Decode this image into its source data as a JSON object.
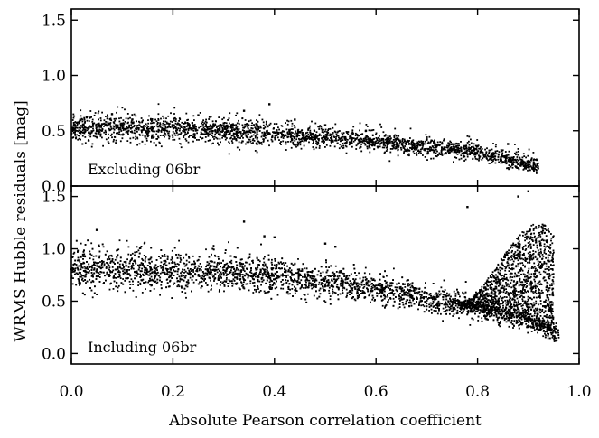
{
  "chart_data": [
    {
      "type": "scatter",
      "panel_label": "Excluding 06br",
      "xlim": [
        0.0,
        1.0
      ],
      "ylim": [
        0.0,
        1.6
      ],
      "yticks": [
        "0.0",
        "0.5",
        "1.0",
        "1.5"
      ],
      "band": {
        "x_start": 0.0,
        "x_end": 0.92,
        "y_at": [
          [
            0.0,
            0.52
          ],
          [
            0.2,
            0.51
          ],
          [
            0.4,
            0.47
          ],
          [
            0.6,
            0.4
          ],
          [
            0.8,
            0.3
          ],
          [
            0.92,
            0.17
          ]
        ],
        "scatter_above": 0.12
      },
      "points": [
        {
          "x": 0.03,
          "y": 0.62
        },
        {
          "x": 0.08,
          "y": 0.65
        },
        {
          "x": 0.12,
          "y": 0.6
        },
        {
          "x": 0.25,
          "y": 0.64
        },
        {
          "x": 0.34,
          "y": 0.68
        },
        {
          "x": 0.39,
          "y": 0.74
        },
        {
          "x": 0.44,
          "y": 0.6
        },
        {
          "x": 0.5,
          "y": 0.55
        },
        {
          "x": 0.58,
          "y": 0.5
        },
        {
          "x": 0.7,
          "y": 0.42
        },
        {
          "x": 0.8,
          "y": 0.36
        },
        {
          "x": 0.86,
          "y": 0.38
        }
      ]
    },
    {
      "type": "scatter",
      "panel_label": "Including 06br",
      "xlim": [
        0.0,
        1.0
      ],
      "ylim": [
        -0.1,
        1.6
      ],
      "yticks": [
        "0.0",
        "0.5",
        "1.0",
        "1.5"
      ],
      "xticks": [
        "0.0",
        "0.2",
        "0.4",
        "0.6",
        "0.8",
        "1.0"
      ],
      "band": {
        "x_start": 0.0,
        "x_end": 0.96,
        "y_at": [
          [
            0.0,
            0.8
          ],
          [
            0.2,
            0.79
          ],
          [
            0.4,
            0.73
          ],
          [
            0.6,
            0.62
          ],
          [
            0.8,
            0.42
          ],
          [
            0.9,
            0.32
          ],
          [
            0.96,
            0.17
          ]
        ],
        "scatter_above": 0.15
      },
      "plume": {
        "x_from": 0.75,
        "x_to": 0.95,
        "y_top": 1.55
      },
      "points": [
        {
          "x": 0.05,
          "y": 1.18
        },
        {
          "x": 0.34,
          "y": 1.26
        },
        {
          "x": 0.38,
          "y": 1.12
        },
        {
          "x": 0.4,
          "y": 1.11
        },
        {
          "x": 0.5,
          "y": 1.05
        },
        {
          "x": 0.52,
          "y": 1.02
        },
        {
          "x": 0.78,
          "y": 1.4
        },
        {
          "x": 0.88,
          "y": 1.5
        },
        {
          "x": 0.9,
          "y": 1.55
        }
      ]
    }
  ],
  "xlabel": "Absolute Pearson correlation coefficient",
  "ylabel": "WRMS Hubble residuals  [mag]"
}
